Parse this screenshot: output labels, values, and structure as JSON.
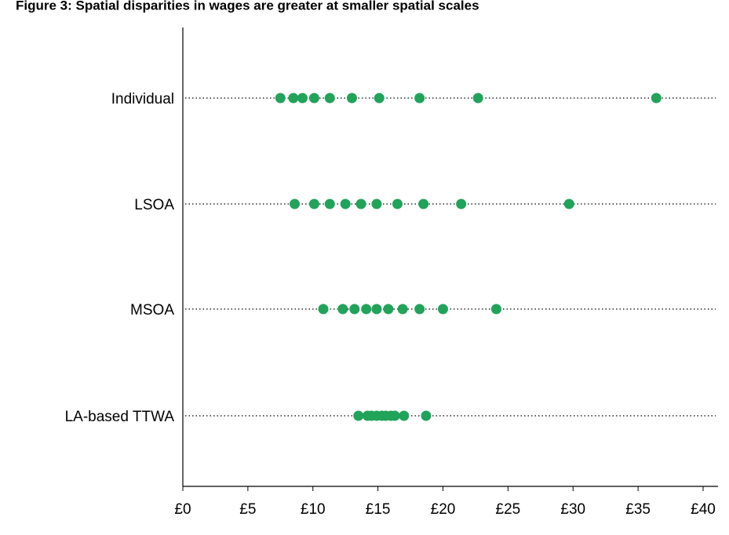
{
  "chart_data": {
    "type": "dot",
    "title": "Figure 3: Spatial disparities in wages are greater at smaller spatial scales",
    "categories": [
      "Individual",
      "LSOA",
      "MSOA",
      "LA-based TTWA"
    ],
    "values": [
      [
        7.5,
        8.5,
        9.2,
        10.1,
        11.3,
        13.0,
        15.1,
        18.2,
        22.7,
        36.4
      ],
      [
        8.6,
        10.1,
        11.3,
        12.5,
        13.7,
        14.9,
        16.5,
        18.5,
        21.4,
        29.7
      ],
      [
        10.8,
        12.3,
        13.2,
        14.1,
        14.9,
        15.8,
        16.9,
        18.2,
        20.0,
        24.1
      ],
      [
        13.5,
        14.2,
        14.5,
        14.9,
        15.3,
        15.6,
        16.0,
        16.3,
        17.0,
        18.7
      ]
    ],
    "color": "#21a35a",
    "xlim": [
      0,
      40
    ],
    "xticks": [
      {
        "value": 0,
        "label": "£0"
      },
      {
        "value": 5,
        "label": "£5"
      },
      {
        "value": 10,
        "label": "£10"
      },
      {
        "value": 15,
        "label": "£15"
      },
      {
        "value": 20,
        "label": "£20"
      },
      {
        "value": 25,
        "label": "£25"
      },
      {
        "value": 30,
        "label": "£30"
      },
      {
        "value": 35,
        "label": "£35"
      },
      {
        "value": 40,
        "label": "£40"
      }
    ]
  }
}
